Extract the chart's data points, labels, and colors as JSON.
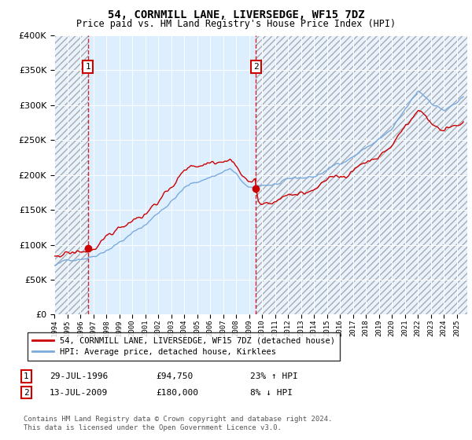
{
  "title": "54, CORNMILL LANE, LIVERSEDGE, WF15 7DZ",
  "subtitle": "Price paid vs. HM Land Registry's House Price Index (HPI)",
  "legend_line1": "54, CORNMILL LANE, LIVERSEDGE, WF15 7DZ (detached house)",
  "legend_line2": "HPI: Average price, detached house, Kirklees",
  "note1_date": "29-JUL-1996",
  "note1_price": "£94,750",
  "note1_hpi": "23% ↑ HPI",
  "note2_date": "13-JUL-2009",
  "note2_price": "£180,000",
  "note2_hpi": "8% ↓ HPI",
  "footer": "Contains HM Land Registry data © Crown copyright and database right 2024.\nThis data is licensed under the Open Government Licence v3.0.",
  "sale1_year": 1996.58,
  "sale1_price": 94750,
  "sale2_year": 2009.53,
  "sale2_price": 180000,
  "red_line_color": "#cc0000",
  "blue_line_color": "#7aaadd",
  "bg_color": "#ddeeff",
  "ylim": [
    0,
    400000
  ],
  "xlim_start": 1994.0,
  "xlim_end": 2025.8
}
